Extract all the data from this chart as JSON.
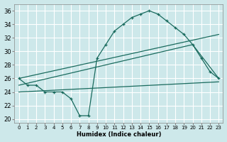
{
  "xlabel": "Humidex (Indice chaleur)",
  "bg_color": "#cde8ea",
  "grid_color": "#ffffff",
  "line_color": "#1a6b5e",
  "xlim": [
    -0.5,
    23.5
  ],
  "ylim": [
    19.5,
    37
  ],
  "xticks": [
    0,
    1,
    2,
    3,
    4,
    5,
    6,
    7,
    8,
    9,
    10,
    11,
    12,
    13,
    14,
    15,
    16,
    17,
    18,
    19,
    20,
    21,
    22,
    23
  ],
  "yticks": [
    20,
    22,
    24,
    26,
    28,
    30,
    32,
    34,
    36
  ],
  "line1_x": [
    0,
    1,
    2,
    3,
    4,
    5,
    6,
    7,
    8,
    9,
    10,
    11,
    12,
    13,
    14,
    15,
    16,
    17,
    18,
    19,
    20,
    21,
    22,
    23
  ],
  "line1_y": [
    26,
    25,
    25,
    24,
    24,
    24,
    23,
    20.5,
    20.5,
    29,
    31,
    33,
    34,
    35,
    35.5,
    36,
    35.5,
    34.5,
    33.5,
    32.5,
    31,
    29,
    27,
    26
  ],
  "line2_x": [
    0,
    23
  ],
  "line2_y": [
    26,
    32.5
  ],
  "line3_x": [
    0,
    23
  ],
  "line3_y": [
    24,
    25.5
  ],
  "line4_x": [
    0,
    20,
    23
  ],
  "line4_y": [
    25,
    31,
    26
  ]
}
